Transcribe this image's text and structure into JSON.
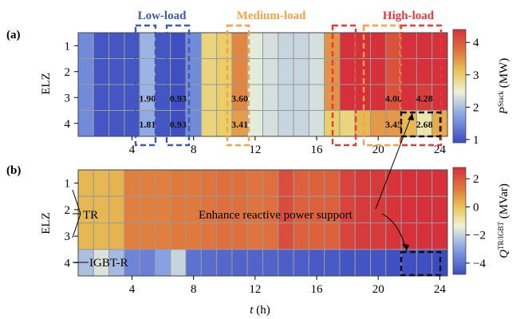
{
  "figure": {
    "labels": {
      "a": "(a)",
      "b": "(b)"
    },
    "ylabel": "ELZ",
    "xlabel": "t (h)"
  },
  "colorbar_a": {
    "ticks": [
      "1",
      "2",
      "3",
      "4"
    ],
    "label": "P^Stack (MW)",
    "range": [
      0.9,
      4.4
    ]
  },
  "colorbar_b": {
    "ticks": [
      "2",
      "0",
      "-2",
      "-4"
    ],
    "label": "Q^TR/IGBT (MVar)",
    "range": [
      -4.8,
      2.8
    ]
  },
  "annotations": {
    "low_load": "Low-load",
    "medium_load": "Medium-load",
    "high_load": "High-load",
    "tr": "TR",
    "igbt_r": "IGBT-R",
    "reactive": "Enhance reactive power support"
  },
  "colors": {
    "low": "#3b5bb0",
    "medium": "#f5a24a",
    "high": "#e23b3b",
    "grid": "#9a9a9a"
  },
  "chart_data": [
    {
      "type": "heatmap",
      "title": "",
      "xlabel": "",
      "ylabel": "ELZ",
      "x": [
        1,
        2,
        3,
        4,
        5,
        6,
        7,
        8,
        9,
        10,
        11,
        12,
        13,
        14,
        15,
        16,
        17,
        18,
        19,
        20,
        21,
        22,
        23,
        24
      ],
      "x_ticks": [
        "4",
        "8",
        "12",
        "16",
        "20",
        "24"
      ],
      "y": [
        "1",
        "2",
        "3",
        "4"
      ],
      "values": [
        [
          1.5,
          1.0,
          1.0,
          1.0,
          1.9,
          1.0,
          0.93,
          1.5,
          2.9,
          3.0,
          3.6,
          2.4,
          2.3,
          2.2,
          2.2,
          2.3,
          3.5,
          4.4,
          4.4,
          4.4,
          4.08,
          4.4,
          4.4,
          4.4
        ],
        [
          1.5,
          1.0,
          1.0,
          1.0,
          1.9,
          1.0,
          0.93,
          1.5,
          2.9,
          3.0,
          3.6,
          2.4,
          2.3,
          2.2,
          2.2,
          2.3,
          3.5,
          4.4,
          4.4,
          4.4,
          4.08,
          4.4,
          4.4,
          4.4
        ],
        [
          1.5,
          1.0,
          1.0,
          1.0,
          1.9,
          1.0,
          0.93,
          1.5,
          2.9,
          3.0,
          3.6,
          2.4,
          2.3,
          2.2,
          2.2,
          2.3,
          3.5,
          4.4,
          4.4,
          4.4,
          4.08,
          4.4,
          4.28,
          4.4
        ],
        [
          1.5,
          1.0,
          1.0,
          1.0,
          1.81,
          1.0,
          0.93,
          1.5,
          2.9,
          3.0,
          3.41,
          2.4,
          2.3,
          2.2,
          2.2,
          2.3,
          3.0,
          2.9,
          3.2,
          3.45,
          3.45,
          3.2,
          2.68,
          3.3
        ]
      ],
      "data_labels": [
        {
          "x": 5,
          "y": "3",
          "text": "1.90"
        },
        {
          "x": 7,
          "y": "3",
          "text": "0.93"
        },
        {
          "x": 11,
          "y": "3",
          "text": "3.60"
        },
        {
          "x": 21,
          "y": "3",
          "text": "4.08"
        },
        {
          "x": 23,
          "y": "3",
          "text": "4.28"
        },
        {
          "x": 5,
          "y": "4",
          "text": "1.81"
        },
        {
          "x": 7,
          "y": "4",
          "text": "0.93"
        },
        {
          "x": 11,
          "y": "4",
          "text": "3.41"
        },
        {
          "x": 21,
          "y": "4",
          "text": "3.45"
        },
        {
          "x": 23,
          "y": "4",
          "text": "2.68"
        }
      ],
      "colorbar_label": "P^Stack (MW)",
      "zlim": [
        0.9,
        4.4
      ]
    },
    {
      "type": "heatmap",
      "title": "",
      "xlabel": "t (h)",
      "ylabel": "ELZ",
      "x": [
        1,
        2,
        3,
        4,
        5,
        6,
        7,
        8,
        9,
        10,
        11,
        12,
        13,
        14,
        15,
        16,
        17,
        18,
        19,
        20,
        21,
        22,
        23,
        24
      ],
      "x_ticks": [
        "4",
        "8",
        "12",
        "16",
        "20",
        "24"
      ],
      "y": [
        "1",
        "2",
        "3",
        "4"
      ],
      "values": [
        [
          0.2,
          0.2,
          0.3,
          1.2,
          1.2,
          1.2,
          1.3,
          1.3,
          1.4,
          1.5,
          1.5,
          1.4,
          1.5,
          2.2,
          1.8,
          1.8,
          1.8,
          2.4,
          2.6,
          2.6,
          2.7,
          2.8,
          2.8,
          2.8
        ],
        [
          0.2,
          0.2,
          0.3,
          1.2,
          1.2,
          1.2,
          1.3,
          1.3,
          1.4,
          1.5,
          1.5,
          1.4,
          1.5,
          2.2,
          1.8,
          1.8,
          1.8,
          2.4,
          2.6,
          2.6,
          2.7,
          2.8,
          2.8,
          2.8
        ],
        [
          0.2,
          0.2,
          0.3,
          1.2,
          1.2,
          1.2,
          1.3,
          1.3,
          1.4,
          1.5,
          1.5,
          1.4,
          1.5,
          2.2,
          1.8,
          1.8,
          1.8,
          2.4,
          2.6,
          2.6,
          2.7,
          2.8,
          2.8,
          2.8
        ],
        [
          -2.4,
          -1.7,
          -2.5,
          -3.6,
          -3.7,
          -3.0,
          -2.0,
          -4.0,
          -4.1,
          -4.2,
          -4.3,
          -4.3,
          -4.3,
          -4.4,
          -4.4,
          -4.5,
          -4.5,
          -4.6,
          -4.6,
          -4.6,
          -4.7,
          -4.7,
          -4.7,
          -4.8
        ]
      ],
      "colorbar_label": "Q^TR/IGBT (MVar)",
      "zlim": [
        -4.8,
        2.8
      ]
    }
  ]
}
